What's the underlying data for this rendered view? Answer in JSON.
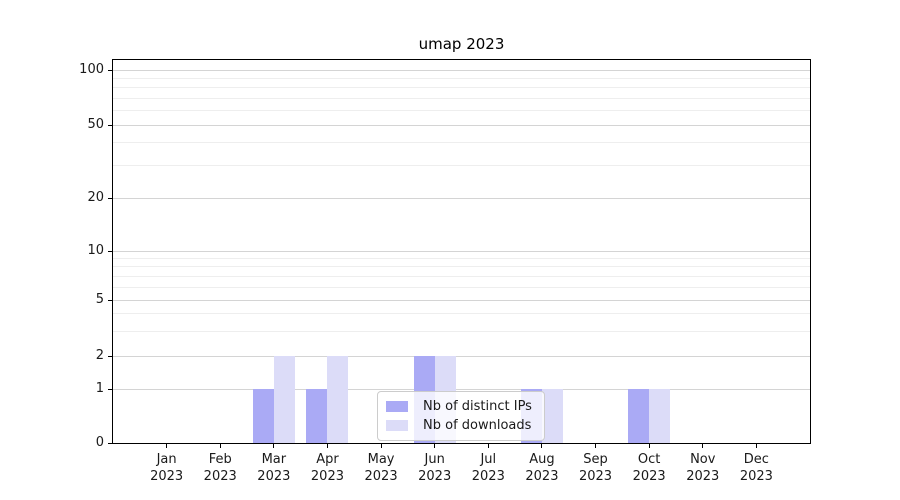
{
  "title": "umap 2023",
  "colors": {
    "series_distinct_ips": "#aaaaf5",
    "series_downloads": "#dcdcf8",
    "grid_major": "#d4d4d4",
    "grid_minor": "#eeeeee",
    "axis": "#000000",
    "text": "#1a1a1a",
    "legend_border": "#cccccc"
  },
  "chart_data": {
    "type": "bar",
    "title": "umap 2023",
    "categories": [
      "Jan",
      "Feb",
      "Mar",
      "Apr",
      "May",
      "Jun",
      "Jul",
      "Aug",
      "Sep",
      "Oct",
      "Nov",
      "Dec"
    ],
    "x_tick_year": "2023",
    "series": [
      {
        "name": "Nb of distinct IPs",
        "slug": "distinct-ips",
        "values": [
          0,
          0,
          1,
          1,
          0,
          2,
          0,
          1,
          0,
          1,
          0,
          0
        ]
      },
      {
        "name": "Nb of downloads",
        "slug": "downloads",
        "values": [
          0,
          0,
          2,
          2,
          0,
          2,
          0,
          1,
          0,
          1,
          0,
          0
        ]
      }
    ],
    "yticks": [
      0,
      1,
      2,
      5,
      10,
      20,
      50,
      100
    ],
    "yscale": "symlog",
    "ylim": [
      0,
      115
    ],
    "grid": true,
    "legend_position": "lower center"
  }
}
